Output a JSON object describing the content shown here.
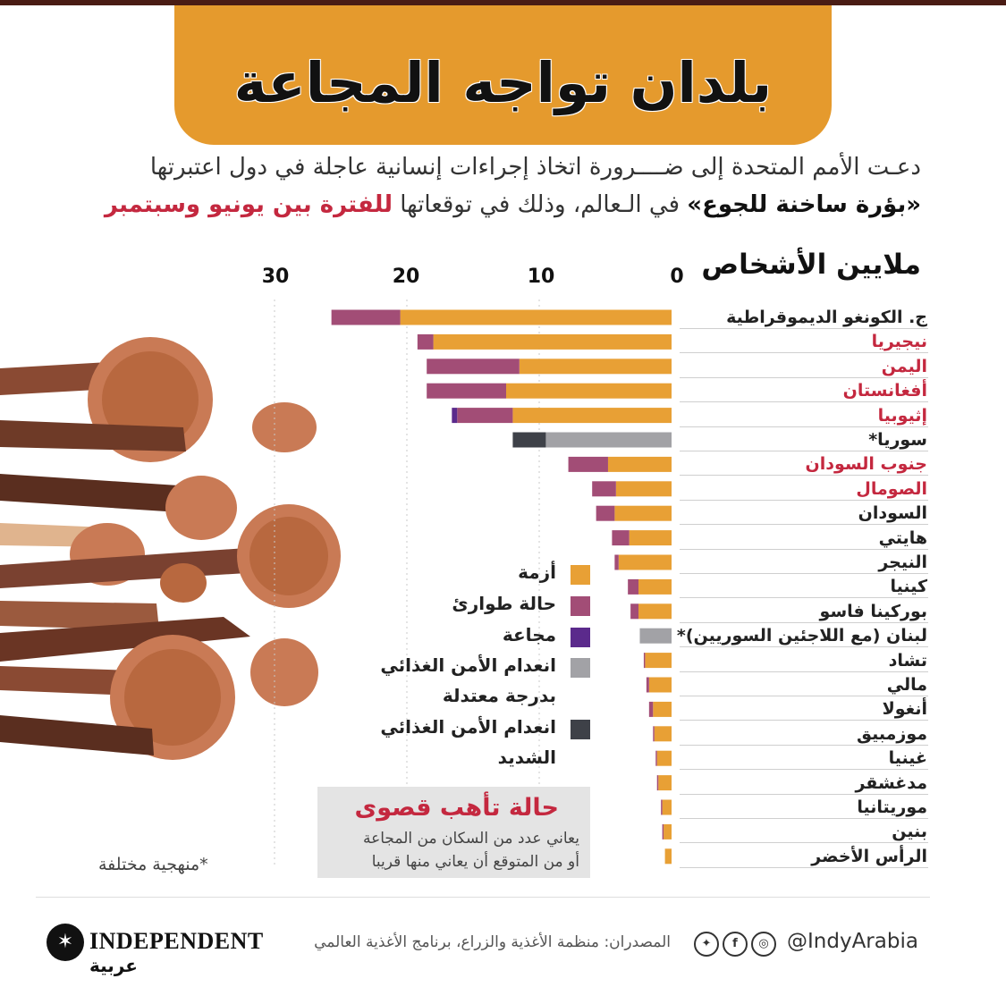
{
  "title": "بلدان تواجه المجاعة",
  "intro": {
    "line1": "دعـت الأمم المتحدة إلى ضــــرورة اتخاذ إجراءات إنسانية عاجلة في دول اعتبرتها",
    "line2_bold": "«بؤرة ساخنة للجوع»",
    "line2_rest": " في الـعالم، وذلك في توقعاتها ",
    "line2_accent": "للفترة بين يونيو وسبتمبر"
  },
  "colors": {
    "crisis": "#e8a035",
    "emergency": "#a24d76",
    "famine": "#5b2a8c",
    "moderate": "#a2a2a6",
    "severe": "#3e4148",
    "highlight_country": "#c4283f",
    "normal_country": "#222222"
  },
  "chart_data": {
    "type": "bar",
    "orientation": "horizontal-stacked",
    "unit_label": "ملايين الأشخاص",
    "xlim": [
      0,
      30
    ],
    "ticks": [
      0,
      10,
      20,
      30
    ],
    "tick_labels": [
      "0",
      "10",
      "20",
      "30"
    ],
    "categories": [
      "ج. الكونغو الديموقراطية",
      "نيجيريا",
      "اليمن",
      "أفغانستان",
      "إثيوبيا",
      "سوريا*",
      "جنوب السودان",
      "الصومال",
      "السودان",
      "هايتي",
      "النيجر",
      "كينيا",
      "بوركينا فاسو",
      "لبنان (مع اللاجئين السوريين)*",
      "تشاد",
      "مالي",
      "أنغولا",
      "موزمبيق",
      "غينيا",
      "مدغشقر",
      "موريتانيا",
      "بنين",
      "الرأس الأخضر"
    ],
    "highlighted": [
      false,
      true,
      true,
      true,
      true,
      false,
      true,
      true,
      false,
      false,
      false,
      false,
      false,
      false,
      false,
      false,
      false,
      false,
      false,
      false,
      false,
      false,
      false
    ],
    "series": [
      {
        "name": "أزمة",
        "key": "crisis",
        "values": [
          20.5,
          18.0,
          11.5,
          12.5,
          12.0,
          0,
          4.8,
          4.2,
          4.3,
          3.2,
          4.0,
          2.5,
          2.5,
          0,
          2.0,
          1.7,
          1.4,
          1.3,
          1.1,
          1.0,
          0.7,
          0.6,
          0.5
        ]
      },
      {
        "name": "حالة طوارئ",
        "key": "emergency",
        "values": [
          5.2,
          1.2,
          7.0,
          6.0,
          4.2,
          0,
          3.0,
          1.8,
          1.4,
          1.3,
          0.3,
          0.8,
          0.6,
          0,
          0.1,
          0.2,
          0.3,
          0.1,
          0.1,
          0.1,
          0.1,
          0.1,
          0
        ]
      },
      {
        "name": "مجاعة",
        "key": "famine",
        "values": [
          0,
          0,
          0,
          0,
          0.4,
          0,
          0,
          0,
          0,
          0,
          0,
          0,
          0,
          0,
          0,
          0,
          0,
          0,
          0,
          0,
          0,
          0,
          0
        ]
      },
      {
        "name": "انعدام الأمن الغذائي بدرجة معتدلة",
        "key": "moderate",
        "values": [
          0,
          0,
          0,
          0,
          0,
          9.5,
          0,
          0,
          0,
          0,
          0,
          0,
          0,
          2.4,
          0,
          0,
          0,
          0,
          0,
          0,
          0,
          0,
          0
        ]
      },
      {
        "name": "انعدام الأمن الغذائي الشديد",
        "key": "severe",
        "values": [
          0,
          0,
          0,
          0,
          0,
          2.5,
          0,
          0,
          0,
          0,
          0,
          0,
          0,
          0,
          0,
          0,
          0,
          0,
          0,
          0,
          0,
          0,
          0
        ]
      }
    ]
  },
  "legend": {
    "crisis": "أزمة",
    "emergency": "حالة طوارئ",
    "famine": "مجاعة",
    "moderate_1": "انعدام الأمن الغذائي",
    "moderate_2": "بدرجة معتدلة",
    "severe_1": "انعدام الأمن الغذائي",
    "severe_2": "الشديد"
  },
  "alert": {
    "title": "حالة تأهب قصوى",
    "line1": "يعاني عدد من السكان من المجاعة",
    "line2": "أو من المتوقع أن يعاني منها قريبا"
  },
  "footnote": "*منهجية مختلفة",
  "footer": {
    "handle": "@IndyArabia",
    "icons": [
      "instagram-icon",
      "facebook-icon",
      "twitter-icon"
    ],
    "sources": "المصدران: منظمة الأغذية والزراع، برنامج الأغذية العالمي",
    "logo_text": "INDEPENDENT",
    "logo_sub": "عربية"
  }
}
